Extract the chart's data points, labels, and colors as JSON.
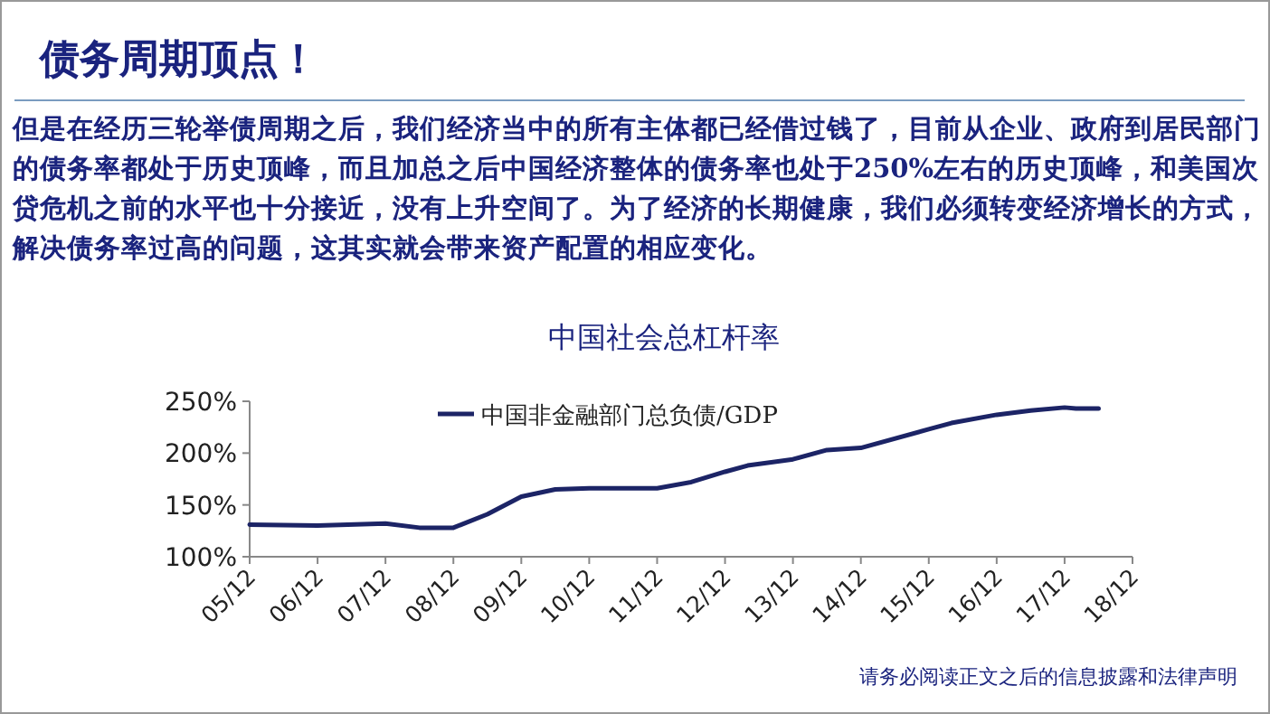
{
  "chart_data": {
    "type": "line",
    "title": "中国社会总杠杆率",
    "annotations": [
      "债务周期顶点！",
      "但是在经历三轮举债周期之后，我们经济当中的所有主体都已经借过钱了，目前从企业、政府到居民部门的债务率都处于历史顶峰，而且加总之后中国经济整体的债务率也处于250%左右的历史顶峰，和美国次贷危机之前的水平也十分接近，没有上升空间了。为了经济的长期健康，我们必须转变经济增长的方式，解决债务率过高的问题，这其实就会带来资产配置的相应变化。",
      "请务必阅读正文之后的信息披露和法律声明"
    ],
    "x": [
      "2005-12",
      "2006-12",
      "2007-12",
      "2008-06",
      "2008-12",
      "2009-06",
      "2009-12",
      "2010-06",
      "2010-12",
      "2011-12",
      "2012-06",
      "2012-12",
      "2013-04",
      "2013-12",
      "2014-06",
      "2014-12",
      "2015-12",
      "2016-04",
      "2016-12",
      "2017-06",
      "2017-12",
      "2018-02",
      "2018-06"
    ],
    "series": [
      {
        "name": "中国非金融部门总负债/GDP",
        "color": "#1c2466",
        "values": [
          131,
          130,
          132,
          128,
          128,
          141,
          158,
          165,
          166,
          166,
          172,
          182,
          188,
          194,
          203,
          205,
          223,
          229,
          237,
          241,
          244,
          243,
          243
        ]
      }
    ],
    "xlim": [
      "2005-12",
      "2018-12"
    ],
    "xticks": [
      {
        "value": "2005-12",
        "label": "05/12"
      },
      {
        "value": "2006-12",
        "label": "06/12"
      },
      {
        "value": "2007-12",
        "label": "07/12"
      },
      {
        "value": "2008-12",
        "label": "08/12"
      },
      {
        "value": "2009-12",
        "label": "09/12"
      },
      {
        "value": "2010-12",
        "label": "10/12"
      },
      {
        "value": "2011-12",
        "label": "11/12"
      },
      {
        "value": "2012-12",
        "label": "12/12"
      },
      {
        "value": "2013-12",
        "label": "13/12"
      },
      {
        "value": "2014-12",
        "label": "14/12"
      },
      {
        "value": "2015-12",
        "label": "15/12"
      },
      {
        "value": "2016-12",
        "label": "16/12"
      },
      {
        "value": "2017-12",
        "label": "17/12"
      },
      {
        "value": "2018-12",
        "label": "18/12"
      }
    ],
    "ylim": [
      100,
      250
    ],
    "yticks": [
      {
        "value": 100,
        "label": "100%"
      },
      {
        "value": 150,
        "label": "150%"
      },
      {
        "value": 200,
        "label": "200%"
      },
      {
        "value": 250,
        "label": "250%"
      }
    ],
    "legend": "top",
    "grid": false,
    "marker": "none",
    "line_style": "solid"
  }
}
